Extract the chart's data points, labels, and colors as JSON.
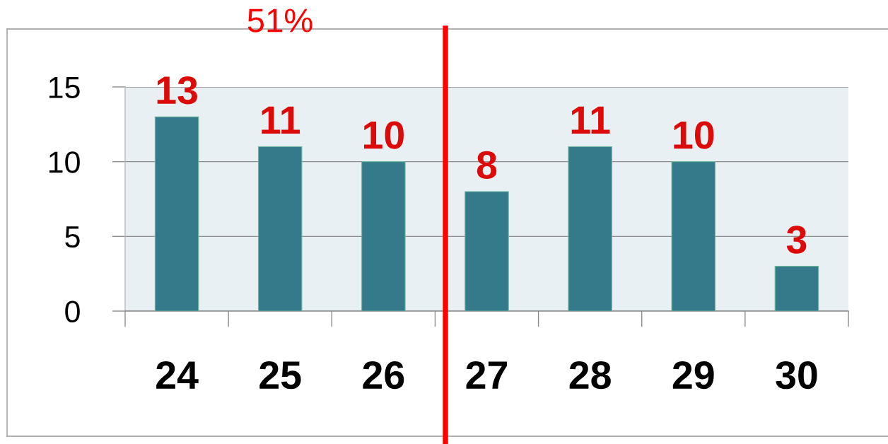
{
  "chart_data": {
    "type": "bar",
    "x": [
      24,
      25,
      26,
      27,
      28,
      29,
      30
    ],
    "values": [
      13,
      11,
      10,
      8,
      11,
      10,
      3
    ],
    "color": "#347a8a",
    "xlim": [
      23.5,
      30.5
    ],
    "xticks": [
      24,
      25,
      26,
      27,
      28,
      29,
      30
    ],
    "ylim": [
      0,
      15
    ],
    "yticks": [
      0,
      5,
      10,
      15
    ],
    "grid": "y",
    "data_labels": true,
    "ref_lines": [
      {
        "axis": "x",
        "value": 26.6,
        "color": "#ff0000"
      }
    ],
    "annotations": [
      "51%"
    ]
  }
}
